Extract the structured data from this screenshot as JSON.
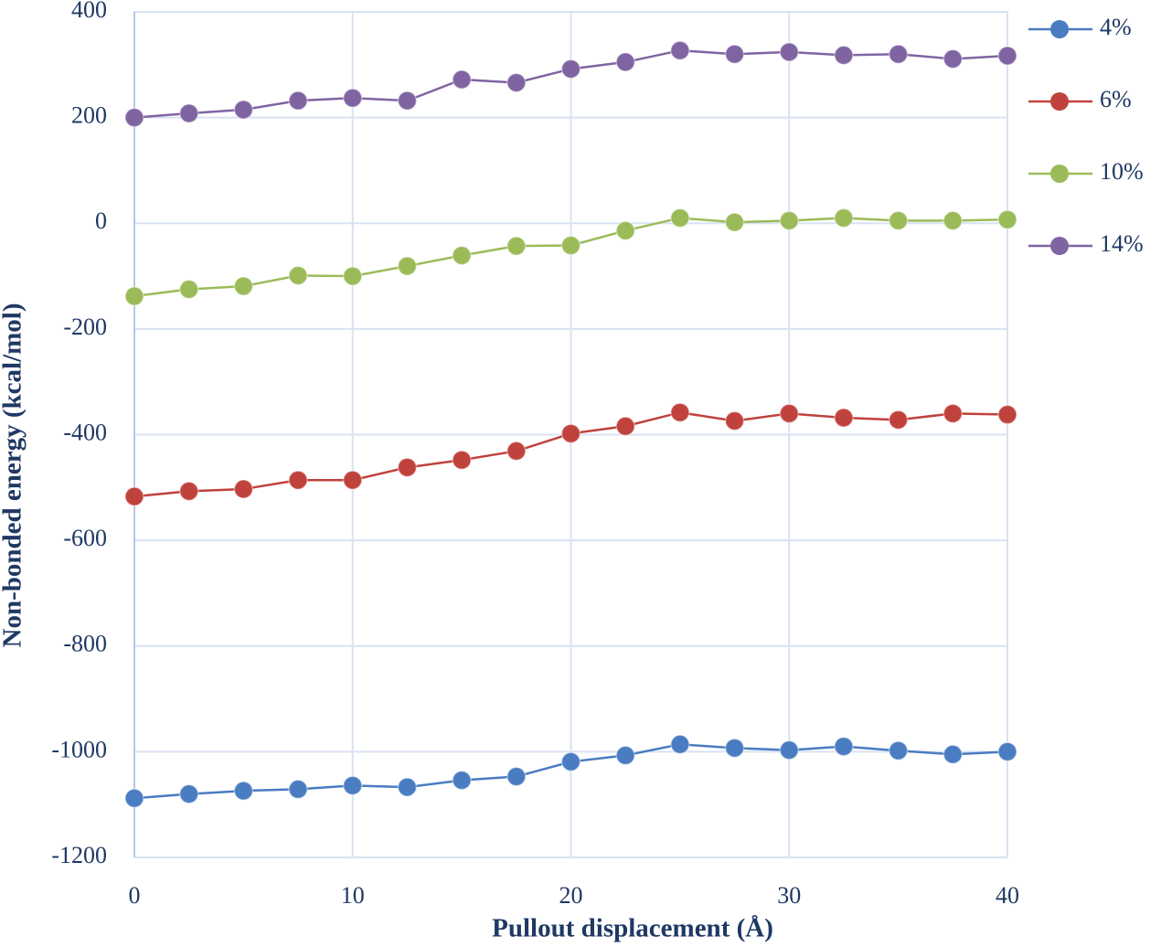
{
  "chart_data": {
    "type": "line",
    "x_label": "Pullout displacement (Å)",
    "y_label": "Non-bonded energy (kcal/mol)",
    "x": [
      0,
      2.5,
      5,
      7.5,
      10,
      12.5,
      15,
      17.5,
      20,
      22.5,
      25,
      27.5,
      30,
      32.5,
      35,
      37.5,
      40
    ],
    "series": [
      {
        "name": "4%",
        "color": "#4a7cc1",
        "values": [
          -1088,
          -1080,
          -1074,
          -1071,
          -1064,
          -1067,
          -1054,
          -1047,
          -1019,
          -1007,
          -986,
          -993,
          -997,
          -990,
          -998,
          -1005,
          -1000
        ]
      },
      {
        "name": "6%",
        "color": "#c0423c",
        "values": [
          -517,
          -507,
          -503,
          -486,
          -486,
          -462,
          -448,
          -431,
          -398,
          -384,
          -358,
          -374,
          -360,
          -368,
          -372,
          -360,
          -362
        ]
      },
      {
        "name": "10%",
        "color": "#9bbb59",
        "values": [
          -138,
          -125,
          -119,
          -99,
          -100,
          -81,
          -61,
          -43,
          -42,
          -14,
          10,
          2,
          5,
          10,
          5,
          5,
          7
        ]
      },
      {
        "name": "14%",
        "color": "#8064a2",
        "values": [
          200,
          208,
          215,
          232,
          237,
          232,
          272,
          266,
          292,
          305,
          327,
          320,
          324,
          318,
          320,
          311,
          317
        ]
      }
    ],
    "xlim": [
      0,
      40
    ],
    "xticks": [
      0,
      10,
      20,
      30,
      40
    ],
    "ylim": [
      -1200,
      400
    ],
    "yticks": [
      -1200,
      -1000,
      -800,
      -600,
      -400,
      -200,
      0,
      200,
      400
    ],
    "grid": true,
    "legend": "right"
  }
}
